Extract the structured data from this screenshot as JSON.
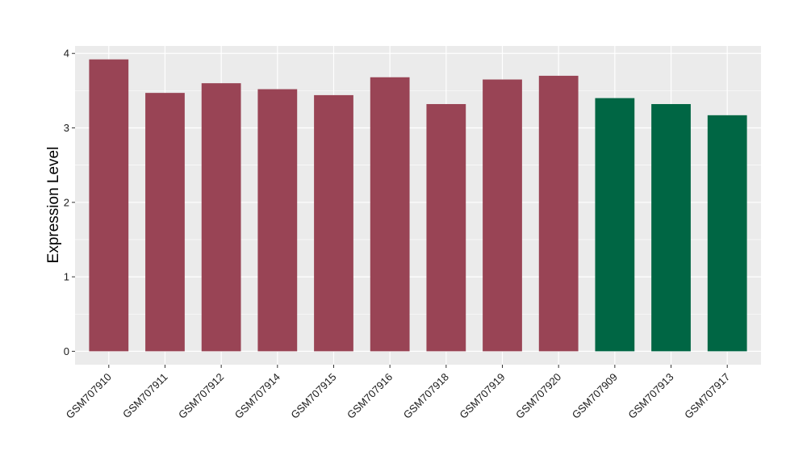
{
  "chart_data": {
    "type": "bar",
    "title": "",
    "xlabel": "",
    "ylabel": "Expression Level",
    "ylim": [
      -0.18,
      4.1
    ],
    "yticks": [
      0,
      1,
      2,
      3,
      4
    ],
    "grid": true,
    "categories": [
      "GSM707910",
      "GSM707911",
      "GSM707912",
      "GSM707914",
      "GSM707915",
      "GSM707916",
      "GSM707918",
      "GSM707919",
      "GSM707920",
      "GSM707909",
      "GSM707913",
      "GSM707917"
    ],
    "values": [
      3.92,
      3.47,
      3.6,
      3.52,
      3.44,
      3.68,
      3.32,
      3.65,
      3.7,
      3.4,
      3.32,
      3.17
    ],
    "bar_colors": [
      "#994455",
      "#994455",
      "#994455",
      "#994455",
      "#994455",
      "#994455",
      "#994455",
      "#994455",
      "#994455",
      "#006644",
      "#006644",
      "#006644"
    ],
    "panel_background": "#ebebeb",
    "grid_color": "#ffffff"
  }
}
